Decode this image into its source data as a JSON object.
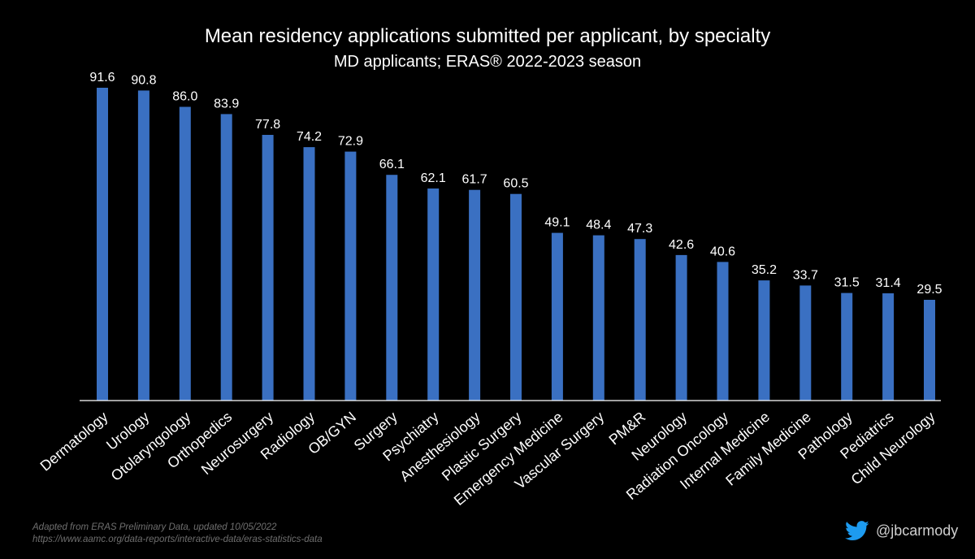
{
  "chart_data": {
    "type": "bar",
    "title": "Mean residency applications submitted per applicant, by specialty",
    "subtitle": "MD applicants; ERAS® 2022-2023 season",
    "categories": [
      "Dermatology",
      "Urology",
      "Otolaryngology",
      "Orthopedics",
      "Neurosurgery",
      "Radiology",
      "OB/GYN",
      "Surgery",
      "Psychiatry",
      "Anesthesiology",
      "Plastic Surgery",
      "Emergency Medicine",
      "Vascular Surgery",
      "PM&R",
      "Neurology",
      "Radiation Oncology",
      "Internal Medicine",
      "Family Medicine",
      "Pathology",
      "Pediatrics",
      "Child Neurology"
    ],
    "values": [
      91.6,
      90.8,
      86.0,
      83.9,
      77.8,
      74.2,
      72.9,
      66.1,
      62.1,
      61.7,
      60.5,
      49.1,
      48.4,
      47.3,
      42.6,
      40.6,
      35.2,
      33.7,
      31.5,
      31.4,
      29.5
    ],
    "value_labels": [
      "91.6",
      "90.8",
      "86.0",
      "83.9",
      "77.8",
      "74.2",
      "72.9",
      "66.1",
      "62.1",
      "61.7",
      "60.5",
      "49.1",
      "48.4",
      "47.3",
      "42.6",
      "40.6",
      "35.2",
      "33.7",
      "31.5",
      "31.4",
      "29.5"
    ],
    "ylim": [
      0,
      92
    ],
    "xlabel": "",
    "ylabel": "",
    "grid": false,
    "bar_color": "#3a70c2",
    "background": "#000000"
  },
  "footer": {
    "source": "Adapted from ERAS Preliminary Data, updated 10/05/2022",
    "url": "https://www.aamc.org/data-reports/interactive-data/eras-statistics-data"
  },
  "credit": {
    "icon": "twitter-bird-icon",
    "handle": "@jbcarmody",
    "icon_color": "#1d9bf0"
  }
}
